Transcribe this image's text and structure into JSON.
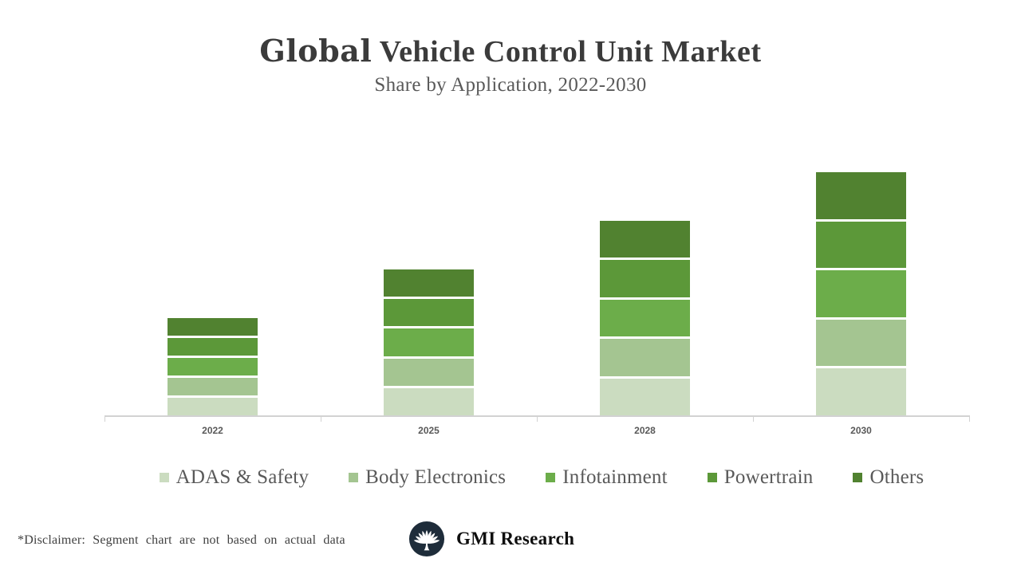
{
  "title": {
    "prefix": "Global",
    "rest": " Vehicle Control Unit Market",
    "subtitle": "Share by Application, 2022-2030"
  },
  "chart_data": {
    "type": "bar",
    "stacked": true,
    "title": "Global Vehicle Control Unit Market",
    "subtitle": "Share by Application, 2022-2030",
    "categories": [
      "2022",
      "2025",
      "2028",
      "2030"
    ],
    "series": [
      {
        "name": "ADAS & Safety",
        "color": "#cbdcc0",
        "values": [
          2,
          3,
          4,
          5
        ]
      },
      {
        "name": "Body Electronics",
        "color": "#a4c591",
        "values": [
          2,
          3,
          4,
          5
        ]
      },
      {
        "name": "Infotainment",
        "color": "#6cad4a",
        "values": [
          2,
          3,
          4,
          5
        ]
      },
      {
        "name": "Powertrain",
        "color": "#5c9839",
        "values": [
          2,
          3,
          4,
          5
        ]
      },
      {
        "name": "Others",
        "color": "#518230",
        "values": [
          2,
          3,
          4,
          5
        ]
      }
    ],
    "category_totals": [
      10,
      15,
      20,
      25
    ],
    "units": "relative units (segments not based on actual data)",
    "y_axis_visible": false,
    "grid": false,
    "legend_position": "bottom",
    "axis_color": "#d2d2d2"
  },
  "footer": {
    "disclaimer": "*Disclaimer: Segment chart are not based on actual data",
    "brand": "GMI Research",
    "logo_color": "#1e2c3a"
  }
}
